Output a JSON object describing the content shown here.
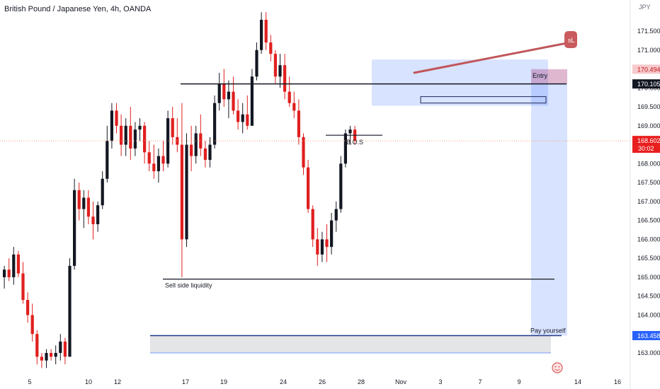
{
  "header": {
    "title": "British Pound / Japanese Yen, 4h, OANDA",
    "currency": "JPY"
  },
  "chart_data": {
    "type": "candlestick",
    "title": "British Pound / Japanese Yen, 4h, OANDA",
    "ylim": [
      162.5,
      172.3
    ],
    "y_ticks": [
      163.0,
      163.5,
      164.0,
      164.5,
      165.0,
      165.5,
      166.0,
      166.5,
      167.0,
      167.5,
      168.0,
      168.5,
      169.0,
      169.5,
      170.0,
      170.5,
      171.0,
      171.5
    ],
    "y_tick_labels": [
      "163.000",
      "163.500",
      "164.000",
      "164.500",
      "165.000",
      "165.500",
      "166.000",
      "166.500",
      "167.000",
      "167.500",
      "168.000",
      "168.500",
      "169.000",
      "169.500",
      "170.000",
      "170.500",
      "171.000",
      "171.500"
    ],
    "x_ticks": [
      "5",
      "10",
      "12",
      "17",
      "19",
      "24",
      "26",
      "28",
      "Nov",
      "3",
      "7",
      "9",
      "14",
      "16"
    ],
    "grid": false,
    "colors": {
      "up": "#131722",
      "down": "#e01f1f",
      "position": "#2962ff",
      "entry_zone": "#f23645"
    },
    "price_tags": [
      {
        "value": 170.494,
        "label": "170.494",
        "style": "red"
      },
      {
        "value": 170.105,
        "label": "170.105",
        "style": "dark"
      },
      {
        "value": 168.602,
        "label": "168.602",
        "sub": "30:02",
        "style": "red-solid"
      },
      {
        "value": 163.458,
        "label": "163.458",
        "style": "blue"
      }
    ],
    "current_price": 168.602,
    "annotations": {
      "bos": "B.O.S",
      "sell_side": "Sell side liquidity",
      "entry": "Entry",
      "target": "Pay yourself",
      "sl": "sL"
    },
    "candles": [
      [
        165.0,
        165.3,
        164.7,
        165.2
      ],
      [
        165.2,
        165.5,
        164.9,
        165.0
      ],
      [
        165.0,
        165.8,
        164.8,
        165.6
      ],
      [
        165.6,
        165.7,
        165.0,
        165.1
      ],
      [
        165.1,
        165.4,
        164.3,
        164.4
      ],
      [
        164.4,
        164.6,
        163.8,
        164.0
      ],
      [
        164.0,
        164.3,
        163.3,
        163.5
      ],
      [
        163.5,
        163.6,
        162.7,
        162.9
      ],
      [
        162.9,
        163.0,
        162.6,
        162.8
      ],
      [
        162.8,
        163.1,
        162.6,
        163.0
      ],
      [
        163.0,
        163.1,
        162.8,
        162.9
      ],
      [
        162.9,
        163.2,
        162.7,
        163.0
      ],
      [
        163.0,
        163.5,
        162.8,
        163.3
      ],
      [
        163.3,
        163.4,
        162.7,
        162.9
      ],
      [
        162.9,
        165.5,
        162.9,
        165.3
      ],
      [
        165.3,
        167.6,
        165.2,
        167.3
      ],
      [
        167.3,
        167.5,
        166.5,
        166.8
      ],
      [
        166.8,
        167.3,
        166.3,
        167.1
      ],
      [
        167.1,
        167.3,
        166.4,
        166.6
      ],
      [
        166.6,
        167.0,
        166.0,
        166.4
      ],
      [
        166.4,
        167.0,
        166.2,
        166.9
      ],
      [
        166.9,
        167.8,
        166.8,
        167.6
      ],
      [
        167.6,
        169.0,
        167.5,
        168.6
      ],
      [
        168.6,
        169.6,
        168.4,
        169.4
      ],
      [
        169.4,
        169.6,
        168.8,
        169.0
      ],
      [
        169.0,
        169.3,
        168.2,
        168.5
      ],
      [
        168.5,
        169.2,
        168.2,
        169.0
      ],
      [
        169.0,
        169.5,
        168.1,
        168.4
      ],
      [
        168.4,
        169.1,
        168.2,
        168.9
      ],
      [
        168.9,
        169.2,
        168.6,
        169.0
      ],
      [
        169.0,
        169.1,
        168.0,
        168.3
      ],
      [
        168.3,
        168.6,
        167.8,
        168.0
      ],
      [
        168.0,
        168.5,
        167.6,
        167.8
      ],
      [
        167.8,
        168.4,
        167.5,
        168.2
      ],
      [
        168.2,
        168.6,
        167.8,
        168.0
      ],
      [
        168.0,
        169.4,
        167.9,
        169.2
      ],
      [
        169.2,
        169.5,
        168.5,
        168.7
      ],
      [
        168.7,
        169.2,
        168.3,
        168.5
      ],
      [
        168.5,
        169.6,
        165.0,
        166.0
      ],
      [
        166.0,
        168.8,
        165.8,
        168.5
      ],
      [
        168.5,
        169.0,
        167.8,
        168.2
      ],
      [
        168.2,
        169.0,
        168.0,
        168.8
      ],
      [
        168.8,
        169.3,
        168.2,
        168.4
      ],
      [
        168.4,
        168.6,
        167.9,
        168.1
      ],
      [
        168.1,
        168.7,
        167.9,
        168.5
      ],
      [
        168.5,
        169.8,
        168.4,
        169.6
      ],
      [
        169.6,
        170.4,
        169.4,
        170.1
      ],
      [
        170.1,
        170.5,
        169.5,
        169.7
      ],
      [
        169.7,
        170.2,
        169.2,
        169.9
      ],
      [
        169.9,
        170.3,
        169.3,
        169.4
      ],
      [
        169.4,
        169.7,
        168.9,
        169.1
      ],
      [
        169.1,
        169.6,
        168.8,
        169.3
      ],
      [
        169.3,
        169.8,
        168.9,
        169.0
      ],
      [
        169.0,
        170.5,
        169.0,
        170.3
      ],
      [
        170.3,
        171.2,
        170.2,
        171.0
      ],
      [
        171.0,
        172.0,
        170.9,
        171.8
      ],
      [
        171.8,
        172.0,
        171.0,
        171.2
      ],
      [
        171.2,
        171.4,
        170.7,
        170.9
      ],
      [
        170.9,
        171.0,
        170.1,
        170.3
      ],
      [
        170.3,
        170.9,
        170.0,
        170.6
      ],
      [
        170.6,
        170.9,
        169.7,
        169.9
      ],
      [
        169.9,
        170.3,
        169.5,
        169.6
      ],
      [
        169.6,
        169.9,
        169.2,
        169.4
      ],
      [
        169.4,
        169.7,
        168.5,
        168.7
      ],
      [
        168.7,
        168.8,
        167.7,
        167.9
      ],
      [
        167.9,
        168.1,
        166.7,
        166.8
      ],
      [
        166.8,
        166.9,
        165.8,
        166.0
      ],
      [
        166.0,
        166.3,
        165.3,
        165.6
      ],
      [
        165.6,
        166.2,
        165.4,
        166.0
      ],
      [
        166.0,
        166.4,
        165.4,
        165.8
      ],
      [
        165.8,
        166.7,
        165.6,
        166.5
      ],
      [
        166.5,
        167.0,
        166.2,
        166.8
      ],
      [
        166.8,
        168.2,
        166.7,
        168.0
      ],
      [
        168.0,
        168.9,
        167.9,
        168.8
      ],
      [
        168.8,
        169.0,
        168.5,
        168.9
      ],
      [
        168.9,
        169.0,
        168.5,
        168.6
      ]
    ]
  }
}
